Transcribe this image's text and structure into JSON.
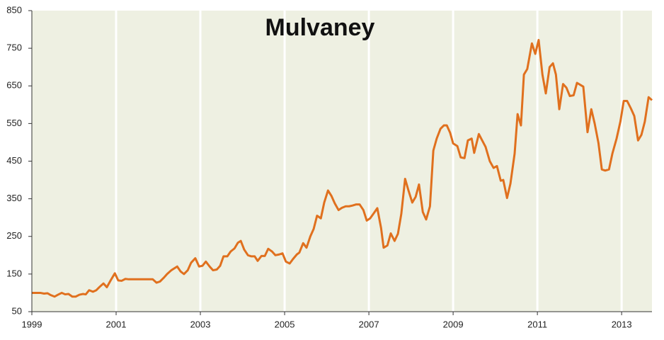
{
  "chart_data": {
    "type": "line",
    "title": "Mulvaney",
    "x": [
      1999.0,
      1999.2,
      1999.29,
      1999.37,
      1999.45,
      1999.54,
      1999.62,
      1999.71,
      1999.79,
      1999.87,
      1999.96,
      2000.04,
      2000.13,
      2000.21,
      2000.28,
      2000.36,
      2000.45,
      2000.53,
      2000.61,
      2000.7,
      2000.78,
      2000.87,
      2000.97,
      2001.05,
      2001.13,
      2001.22,
      2001.3,
      2001.61,
      2001.87,
      2001.96,
      2002.04,
      2002.13,
      2002.21,
      2002.31,
      2002.45,
      2002.53,
      2002.61,
      2002.7,
      2002.78,
      2002.88,
      2002.97,
      2003.05,
      2003.13,
      2003.22,
      2003.3,
      2003.39,
      2003.47,
      2003.55,
      2003.64,
      2003.72,
      2003.81,
      2003.89,
      2003.96,
      2004.04,
      2004.13,
      2004.21,
      2004.29,
      2004.36,
      2004.45,
      2004.53,
      2004.61,
      2004.7,
      2004.78,
      2004.87,
      2004.95,
      2005.03,
      2005.12,
      2005.2,
      2005.29,
      2005.35,
      2005.44,
      2005.52,
      2005.61,
      2005.69,
      2005.77,
      2005.86,
      2005.94,
      2006.03,
      2006.11,
      2006.19,
      2006.28,
      2006.36,
      2006.45,
      2006.53,
      2006.61,
      2006.7,
      2006.78,
      2006.87,
      2006.95,
      2007.03,
      2007.12,
      2007.2,
      2007.29,
      2007.35,
      2007.44,
      2007.52,
      2007.61,
      2007.69,
      2007.77,
      2007.86,
      2007.94,
      2008.03,
      2008.11,
      2008.19,
      2008.28,
      2008.36,
      2008.45,
      2008.53,
      2008.61,
      2008.7,
      2008.78,
      2008.85,
      2008.93,
      2009.0,
      2009.1,
      2009.18,
      2009.27,
      2009.35,
      2009.44,
      2009.5,
      2009.61,
      2009.69,
      2009.77,
      2009.87,
      2009.96,
      2010.04,
      2010.13,
      2010.19,
      2010.28,
      2010.36,
      2010.46,
      2010.53,
      2010.61,
      2010.68,
      2010.76,
      2010.87,
      2010.95,
      2011.03,
      2011.12,
      2011.2,
      2011.29,
      2011.37,
      2011.44,
      2011.52,
      2011.61,
      2011.69,
      2011.77,
      2011.86,
      2011.94,
      2012.03,
      2012.09,
      2012.19,
      2012.28,
      2012.36,
      2012.45,
      2012.53,
      2012.61,
      2012.7,
      2012.78,
      2012.88,
      2012.97,
      2013.05,
      2013.13,
      2013.22,
      2013.3,
      2013.39,
      2013.47,
      2013.55,
      2013.64,
      2013.72
    ],
    "series": [
      {
        "name": "Mulvaney",
        "color": "#e0701e",
        "values": [
          100,
          100,
          98,
          99,
          94,
          90,
          95,
          100,
          96,
          97,
          90,
          90,
          95,
          97,
          96,
          107,
          103,
          107,
          116,
          125,
          115,
          133,
          152,
          133,
          132,
          137,
          136,
          136,
          136,
          127,
          130,
          140,
          150,
          160,
          170,
          157,
          150,
          160,
          180,
          192,
          170,
          172,
          183,
          170,
          160,
          162,
          172,
          197,
          197,
          210,
          218,
          233,
          238,
          215,
          200,
          197,
          197,
          185,
          198,
          198,
          217,
          210,
          200,
          202,
          205,
          183,
          178,
          190,
          202,
          207,
          232,
          220,
          250,
          270,
          305,
          298,
          340,
          372,
          358,
          338,
          320,
          326,
          330,
          330,
          332,
          335,
          335,
          320,
          292,
          298,
          312,
          325,
          272,
          220,
          226,
          258,
          238,
          257,
          310,
          403,
          372,
          340,
          355,
          388,
          315,
          295,
          330,
          478,
          510,
          536,
          545,
          545,
          525,
          497,
          490,
          460,
          458,
          505,
          510,
          472,
          522,
          505,
          488,
          450,
          432,
          437,
          398,
          400,
          352,
          390,
          470,
          575,
          545,
          680,
          695,
          763,
          735,
          772,
          680,
          630,
          700,
          710,
          680,
          588,
          655,
          645,
          623,
          625,
          658,
          652,
          648,
          527,
          588,
          550,
          498,
          428,
          425,
          428,
          470,
          510,
          555,
          610,
          610,
          590,
          570,
          505,
          520,
          555,
          620,
          612
        ]
      }
    ],
    "xlim": [
      1999,
      2013.72
    ],
    "xticks": [
      1999,
      2001,
      2003,
      2005,
      2007,
      2009,
      2011,
      2013
    ],
    "ylim": [
      50,
      850
    ],
    "yticks": [
      50,
      150,
      250,
      350,
      450,
      550,
      650,
      750,
      850
    ],
    "grid": true,
    "background": "#eef0e2"
  }
}
